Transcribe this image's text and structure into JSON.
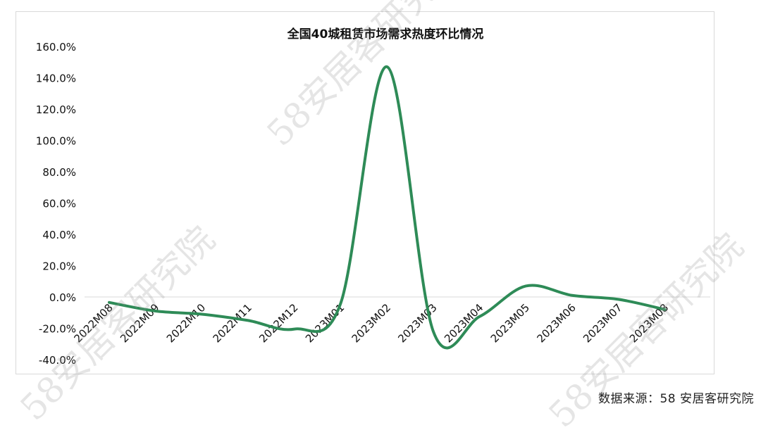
{
  "chart_data": {
    "type": "line",
    "title": "全国40城租赁市场需求热度环比情况",
    "xlabel": "",
    "ylabel": "",
    "categories": [
      "2022M08",
      "2022M09",
      "2022M10",
      "2022M11",
      "2022M12",
      "2023M01",
      "2023M02",
      "2023M03",
      "2023M04",
      "2023M05",
      "2023M06",
      "2023M07",
      "2023M08"
    ],
    "series": [
      {
        "values": [
          -3.5,
          -9.0,
          -11.0,
          -15.0,
          -20.5,
          -4.0,
          147.0,
          -22.0,
          -12.5,
          7.0,
          1.0,
          -1.5,
          -8.0
        ],
        "color": "#2e8b57"
      }
    ],
    "ylim": [
      -40,
      160
    ],
    "yticks": [
      "-40.0%",
      "-20.0%",
      "0.0%",
      "20.0%",
      "40.0%",
      "60.0%",
      "80.0%",
      "100.0%",
      "120.0%",
      "140.0%",
      "160.0%"
    ],
    "ytick_values": [
      -40,
      -20,
      0,
      20,
      40,
      60,
      80,
      100,
      120,
      140,
      160
    ],
    "grid": false,
    "zero_line": true,
    "legend": "none"
  },
  "source_note": "数据来源：58 安居客研究院",
  "watermarks": [
    "58安居客研究院",
    "58安居客研究院",
    "58安居客研究院"
  ]
}
